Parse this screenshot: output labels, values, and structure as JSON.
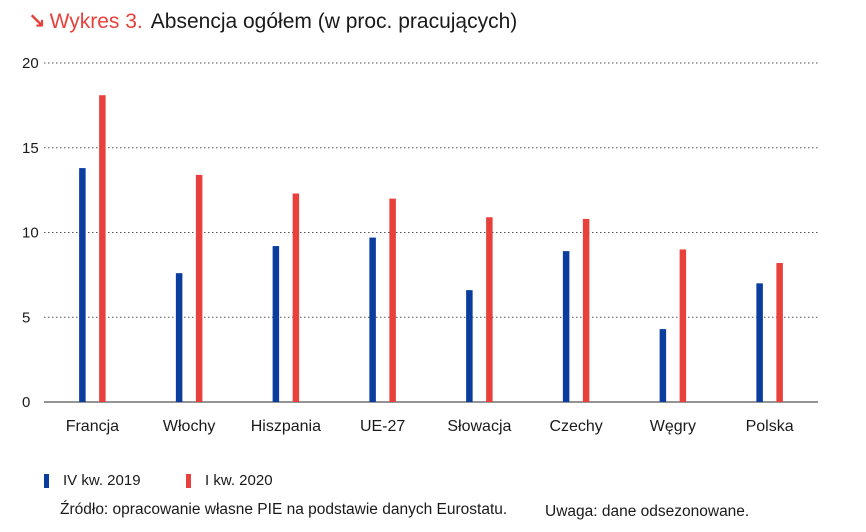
{
  "header": {
    "arrow_icon": "↘",
    "figure_number": "Wykres 3.",
    "title": "Absencja ogółem (w proc. pracujących)"
  },
  "colors": {
    "series_2019": "#0a3d9e",
    "series_2020": "#e8413c",
    "grid": "#555555",
    "text": "#1a1a1a"
  },
  "chart_data": {
    "type": "bar",
    "title": "Absencja ogółem (w proc. pracujących)",
    "xlabel": "",
    "ylabel": "",
    "ylim": [
      0,
      20
    ],
    "yticks": [
      0,
      5,
      10,
      15,
      20
    ],
    "ytick_labels": [
      "0",
      "5",
      "10",
      "15",
      "20"
    ],
    "grid": true,
    "categories": [
      "Francja",
      "Włochy",
      "Hiszpania",
      "UE-27",
      "Słowacja",
      "Czechy",
      "Węgry",
      "Polska"
    ],
    "series": [
      {
        "name": "IV kw. 2019",
        "color": "#0a3d9e",
        "values": [
          13.8,
          7.6,
          9.2,
          9.7,
          6.6,
          8.9,
          4.3,
          7.0
        ]
      },
      {
        "name": "I kw. 2020",
        "color": "#e8413c",
        "values": [
          18.1,
          13.4,
          12.3,
          12.0,
          10.9,
          10.8,
          9.0,
          8.2
        ]
      }
    ],
    "legend_position": "bottom-left"
  },
  "footer": {
    "source": "Źródło: opracowanie własne PIE na podstawie danych Eurostatu.",
    "note": "Uwaga: dane odsezonowane."
  }
}
